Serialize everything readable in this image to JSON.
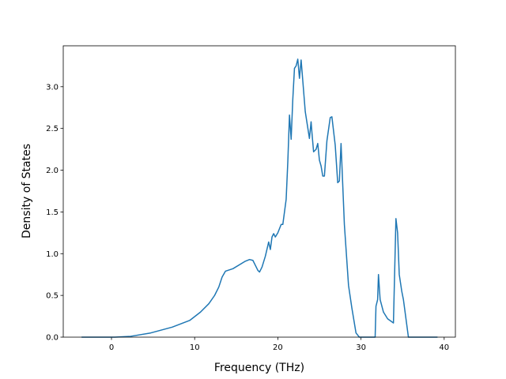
{
  "chart_data": {
    "type": "line",
    "x_label": "Frequency (THz)",
    "y_label": "Density of States",
    "x": [
      -3.6,
      0.4,
      2.3,
      4.7,
      7.3,
      9.4,
      10.7,
      11.7,
      12.4,
      12.9,
      13.3,
      13.7,
      14.6,
      16.1,
      16.6,
      17.0,
      17.3,
      17.6,
      17.8,
      18.1,
      18.5,
      18.9,
      19.1,
      19.3,
      19.5,
      19.7,
      20.0,
      20.4,
      20.6,
      21.0,
      21.2,
      21.4,
      21.6,
      21.8,
      22.0,
      22.2,
      22.4,
      22.6,
      22.8,
      23.3,
      23.8,
      24.0,
      24.1,
      24.3,
      24.6,
      24.8,
      25.0,
      25.2,
      25.4,
      25.6,
      25.9,
      26.3,
      26.5,
      26.9,
      27.2,
      27.4,
      27.6,
      28.0,
      28.5,
      28.9,
      29.4,
      29.8,
      31.7,
      31.8,
      32.0,
      32.1,
      32.3,
      32.7,
      33.2,
      33.9,
      34.2,
      34.4,
      34.6,
      34.9,
      35.1,
      35.5,
      35.7,
      39.2
    ],
    "series": [
      {
        "name": "DOS",
        "color": "#1f77b4",
        "values": [
          0,
          0,
          0.01,
          0.05,
          0.12,
          0.2,
          0.3,
          0.4,
          0.5,
          0.6,
          0.72,
          0.79,
          0.82,
          0.91,
          0.93,
          0.92,
          0.86,
          0.8,
          0.78,
          0.84,
          0.97,
          1.14,
          1.05,
          1.2,
          1.24,
          1.2,
          1.25,
          1.35,
          1.35,
          1.65,
          2.1,
          2.66,
          2.37,
          2.85,
          3.22,
          3.25,
          3.33,
          3.1,
          3.32,
          2.7,
          2.38,
          2.58,
          2.45,
          2.22,
          2.25,
          2.32,
          2.12,
          2.05,
          1.93,
          1.93,
          2.35,
          2.63,
          2.64,
          2.3,
          1.85,
          1.87,
          2.32,
          1.35,
          0.62,
          0.35,
          0.05,
          0,
          0,
          0.37,
          0.45,
          0.75,
          0.45,
          0.3,
          0.22,
          0.17,
          1.42,
          1.25,
          0.75,
          0.55,
          0.45,
          0.15,
          0,
          0
        ]
      }
    ],
    "xlim": [
      -5.8,
      41.35
    ],
    "ylim": [
      0,
      3.49
    ],
    "xticks": [
      0,
      10,
      20,
      30,
      40
    ],
    "yticks": [
      {
        "value": 0,
        "label": "0.0"
      },
      {
        "value": 0.5,
        "label": "0.5"
      },
      {
        "value": 1,
        "label": "1.0"
      },
      {
        "value": 1.5,
        "label": "1.5"
      },
      {
        "value": 2,
        "label": "2.0"
      },
      {
        "value": 2.5,
        "label": "2.5"
      },
      {
        "value": 3,
        "label": "3.0"
      }
    ],
    "grid": false
  }
}
